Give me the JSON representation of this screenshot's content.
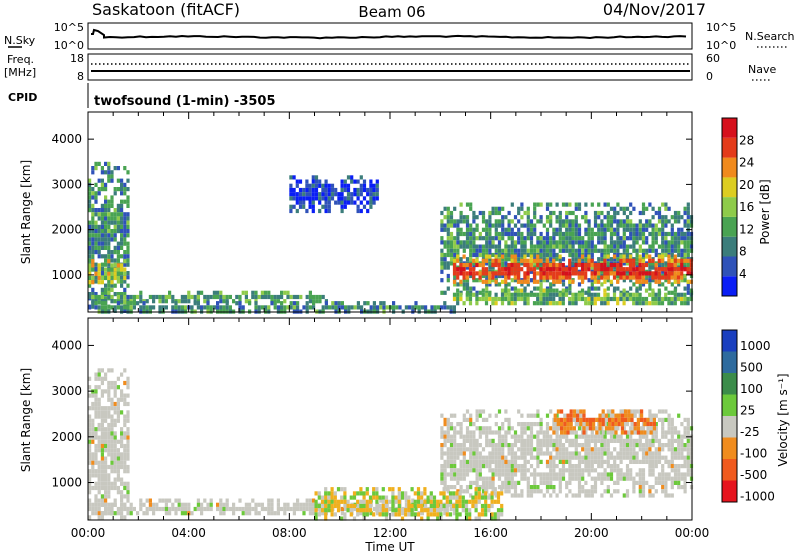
{
  "header": {
    "station": "Saskatoon (fitACF)",
    "beam": "Beam 06",
    "date": "04/Nov/2017"
  },
  "noise_panel": {
    "left_label": "N.Sky",
    "left_ticks": [
      "10^5",
      "10^0"
    ],
    "right_label": "N.Search",
    "right_ticks": [
      "10^5",
      "10^0"
    ]
  },
  "freq_panel": {
    "left_label_1": "Freq.",
    "left_label_2": "[MHz]",
    "left_ticks": [
      "18",
      "8"
    ],
    "right_label": "Nave",
    "right_ticks": [
      "60",
      "0"
    ]
  },
  "cpid": {
    "label": "CPID",
    "text": "twofsound (1-min) -3505"
  },
  "time_axis": {
    "label": "Time UT",
    "ticks": [
      "00:00",
      "04:00",
      "08:00",
      "12:00",
      "16:00",
      "20:00",
      "00:00"
    ]
  },
  "chart_data": [
    {
      "type": "heatmap",
      "panel": "power",
      "x": {
        "label": "Time UT",
        "unit": "hour",
        "range": [
          0,
          24
        ],
        "ticks": [
          0,
          4,
          8,
          12,
          16,
          20,
          24
        ]
      },
      "y": {
        "label": "Slant Range [km]",
        "range": [
          180,
          4600
        ],
        "ticks": [
          1000,
          2000,
          3000,
          4000
        ]
      },
      "colorbar": {
        "label": "Power [dB]",
        "range": [
          0,
          32
        ],
        "ticks": [
          4,
          8,
          12,
          16,
          20,
          24,
          28
        ],
        "colors": [
          "#0a1ef5",
          "#2f52b8",
          "#3b7d7b",
          "#49a352",
          "#8ecb4a",
          "#dccd21",
          "#f08a1d",
          "#e43b1a",
          "#d6101c"
        ]
      },
      "echo_regions": [
        {
          "t0": 0.0,
          "t1": 1.6,
          "r0": 200,
          "r1": 3500,
          "power_db": 10
        },
        {
          "t0": 0.0,
          "t1": 1.4,
          "r0": 850,
          "r1": 1350,
          "power_db": 18
        },
        {
          "t0": 0.0,
          "t1": 9.5,
          "r0": 420,
          "r1": 650,
          "power_db": 12
        },
        {
          "t0": 0.0,
          "t1": 14.5,
          "r0": 200,
          "r1": 420,
          "power_db": 10
        },
        {
          "t0": 8.0,
          "t1": 11.5,
          "r0": 2400,
          "r1": 3200,
          "power_db": 4
        },
        {
          "t0": 14.0,
          "t1": 24.0,
          "r0": 650,
          "r1": 2600,
          "power_db": 10
        },
        {
          "t0": 14.5,
          "t1": 24.0,
          "r0": 850,
          "r1": 1450,
          "power_db": 24
        },
        {
          "t0": 14.5,
          "t1": 24.0,
          "r0": 350,
          "r1": 700,
          "power_db": 14
        }
      ]
    },
    {
      "type": "heatmap",
      "panel": "velocity",
      "x": {
        "label": "Time UT",
        "unit": "hour",
        "range": [
          0,
          24
        ],
        "ticks": [
          0,
          4,
          8,
          12,
          16,
          20,
          24
        ]
      },
      "y": {
        "label": "Slant Range [km]",
        "range": [
          180,
          4600
        ],
        "ticks": [
          1000,
          2000,
          3000,
          4000
        ]
      },
      "colorbar": {
        "label": "Velocity [m s⁻¹]",
        "tick_labels": [
          "1000",
          "500",
          "100",
          "25",
          "-25",
          "-100",
          "-500",
          "-1000"
        ],
        "colors": [
          "#1a3fbf",
          "#2e6b9e",
          "#3b8c4a",
          "#6cc93b",
          "#c8c8c0",
          "#f08c1e",
          "#f05a1e",
          "#e6141e"
        ]
      },
      "echo_regions": [
        {
          "t0": 0.0,
          "t1": 1.6,
          "r0": 200,
          "r1": 3500,
          "velocity": "ground scatter"
        },
        {
          "t0": 0.0,
          "t1": 14.5,
          "r0": 350,
          "r1": 650,
          "velocity": "ground scatter"
        },
        {
          "t0": 14.0,
          "t1": 24.0,
          "r0": 700,
          "r1": 2600,
          "velocity": "ground scatter"
        },
        {
          "t0": 18.5,
          "t1": 22.5,
          "r0": 2100,
          "r1": 2600,
          "velocity": "-100 to -500"
        },
        {
          "t0": 9.0,
          "t1": 16.5,
          "r0": 250,
          "r1": 900,
          "velocity": "-100"
        }
      ]
    }
  ]
}
